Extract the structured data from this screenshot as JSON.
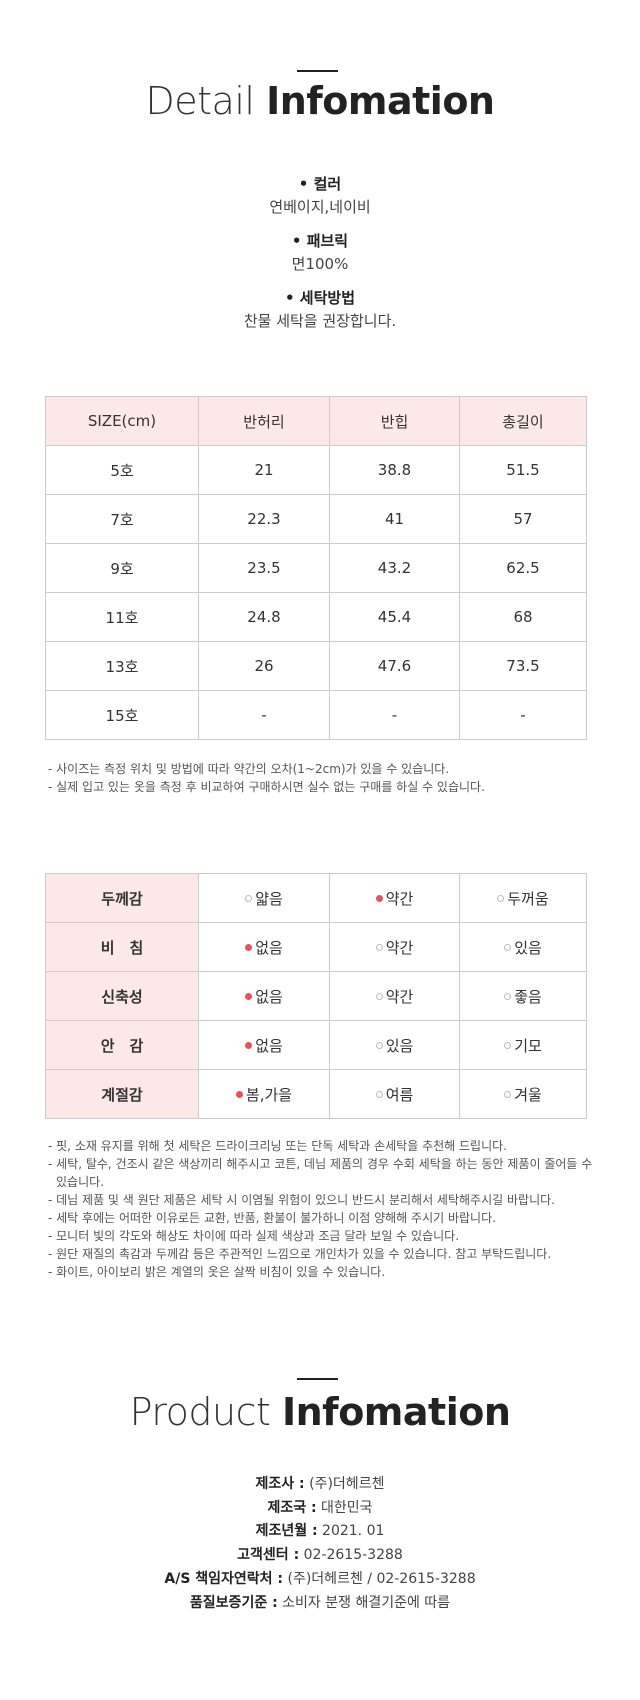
{
  "detail_header": {
    "light": "Detail",
    "bold": "Infomation"
  },
  "specs": [
    {
      "label": "컬러",
      "value": "연베이지,네이비"
    },
    {
      "label": "패브릭",
      "value": "면100%"
    },
    {
      "label": "세탁방법",
      "value": "찬물 세탁을 권장합니다."
    }
  ],
  "size_table": {
    "headers": [
      "SIZE(cm)",
      "반허리",
      "반힙",
      "총길이"
    ],
    "rows": [
      [
        "5호",
        "21",
        "38.8",
        "51.5"
      ],
      [
        "7호",
        "22.3",
        "41",
        "57"
      ],
      [
        "9호",
        "23.5",
        "43.2",
        "62.5"
      ],
      [
        "11호",
        "24.8",
        "45.4",
        "68"
      ],
      [
        "13호",
        "26",
        "47.6",
        "73.5"
      ],
      [
        "15호",
        "-",
        "-",
        "-"
      ]
    ]
  },
  "size_notes": [
    "- 사이즈는 측정 위치 및 방법에 따라 약간의 오차(1~2cm)가 있을 수 있습니다.",
    "- 실제 입고 있는 옷을 측정 후 비교하여 구매하시면 실수 없는 구매를 하실 수 있습니다."
  ],
  "feel_table": {
    "rows": [
      {
        "label": "두께감",
        "options": [
          "얇음",
          "약간",
          "두꺼움"
        ],
        "selected": 1
      },
      {
        "label": "비　침",
        "options": [
          "없음",
          "약간",
          "있음"
        ],
        "selected": 0
      },
      {
        "label": "신축성",
        "options": [
          "없음",
          "약간",
          "좋음"
        ],
        "selected": 0
      },
      {
        "label": "안　감",
        "options": [
          "없음",
          "있음",
          "기모"
        ],
        "selected": 0
      },
      {
        "label": "계절감",
        "options": [
          "봄,가을",
          "여름",
          "겨울"
        ],
        "selected": 0
      }
    ]
  },
  "care_notes": [
    "- 핏, 소재 유지를 위해 첫 세탁은 드라이크리닝 또는 단독 세탁과 손세탁을 추천해 드립니다.",
    "- 세탁, 탈수, 건조시 같은 색상끼리 해주시고 코튼, 데님 제품의 경우 수회 세탁을 하는 동안 제품이 줄어들 수 있습니다.",
    "- 데님 제품 및 색 원단 제품은 세탁 시 이염될 위험이 있으니 반드시 분리해서 세탁해주시길 바랍니다.",
    "- 세탁 후에는 어떠한 이유로든 교환, 반품, 환불이 불가하니 이점 양해해 주시기 바랍니다.",
    "- 모니터 빛의 각도와 해상도 차이에 따라 실제 색상과 조금 달라 보일 수 있습니다.",
    "- 원단 재질의 촉감과 두께감 등은 주관적인 느낌으로 개인차가 있을 수 있습니다. 참고 부탁드립니다.",
    "- 화이트, 아이보리 밝은 계열의 옷은 살짝 비침이 있을 수 있습니다."
  ],
  "product_header": {
    "light": "Product",
    "bold": "Infomation"
  },
  "product_info": [
    {
      "label": "제조사 :",
      "value": "(주)더헤르첸"
    },
    {
      "label": "제조국 :",
      "value": "대한민국"
    },
    {
      "label": "제조년월 :",
      "value": "2021. 01"
    },
    {
      "label": "고객센터 :",
      "value": "02-2615-3288"
    },
    {
      "label": "A/S 책임자연락처 :",
      "value": "(주)더헤르첸 / 02-2615-3288"
    },
    {
      "label": "품질보증기준 :",
      "value": "소비자 분쟁 해결기준에 따름"
    }
  ]
}
